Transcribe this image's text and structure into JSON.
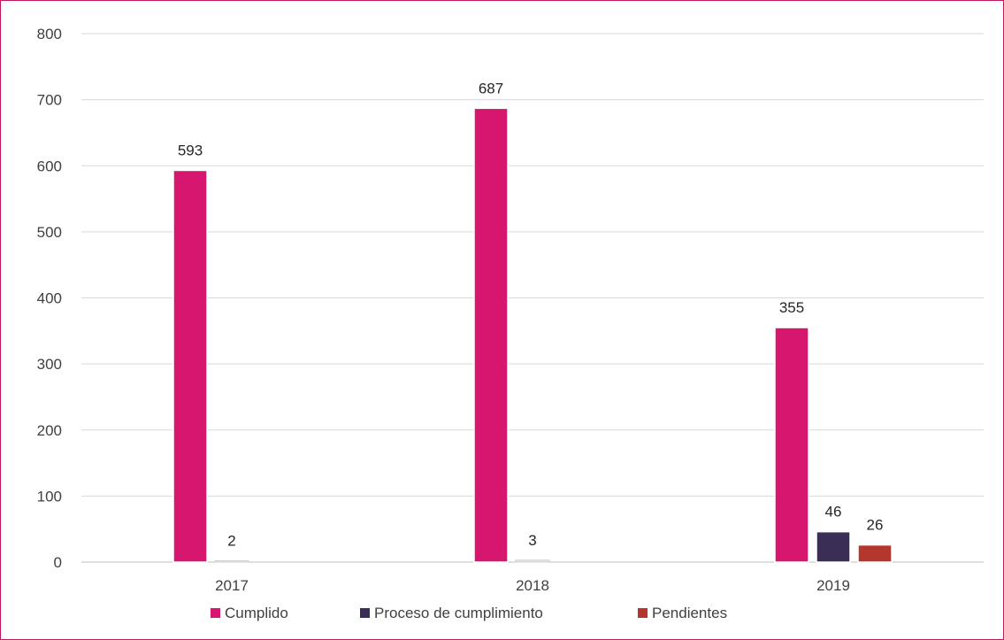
{
  "chart_data": {
    "type": "bar",
    "categories": [
      "2017",
      "2018",
      "2019"
    ],
    "series": [
      {
        "name": "Cumplido",
        "values": [
          593,
          687,
          355
        ],
        "color": "#d6166f"
      },
      {
        "name": "Proceso de cumplimiento",
        "values": [
          2,
          3,
          46
        ],
        "color": "#3b2e56"
      },
      {
        "name": "Pendientes",
        "values": [
          null,
          null,
          26
        ],
        "color": "#b4362c"
      }
    ],
    "y_ticks": [
      "0",
      "100",
      "200",
      "300",
      "400",
      "500",
      "600",
      "700",
      "800"
    ],
    "ylim": [
      0,
      800
    ],
    "grid": true,
    "legend_position": "bottom",
    "border_color": "#c2185b"
  }
}
